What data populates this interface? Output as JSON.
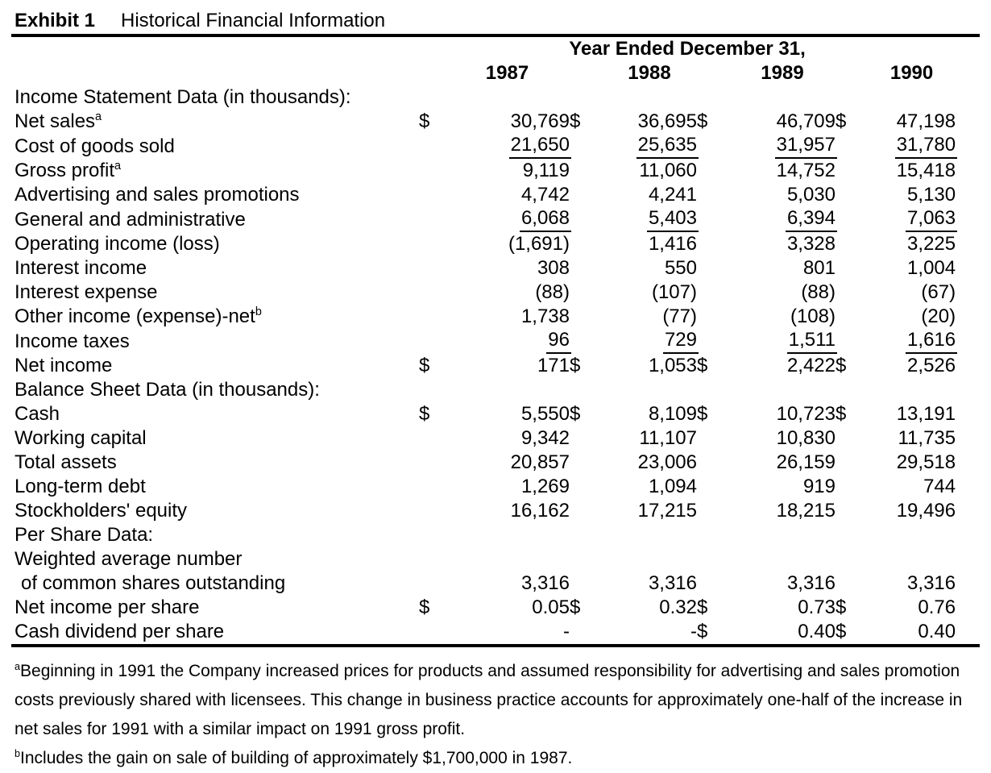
{
  "header": {
    "exhibit_label": "Exhibit 1",
    "title": "Historical Financial Information",
    "span_header": "Year Ended December 31,",
    "years": [
      "1987",
      "1988",
      "1989",
      "1990"
    ]
  },
  "table": {
    "currency_symbol": "$",
    "rows": [
      {
        "type": "section",
        "label": "Income Statement Data (in thousands):"
      },
      {
        "type": "data",
        "label": "Net sales",
        "sup": "a",
        "dollar": true,
        "values": [
          "30,769",
          "36,695",
          "46,709",
          "47,198"
        ]
      },
      {
        "type": "data",
        "label": "Cost of goods sold",
        "underline": true,
        "values": [
          "21,650",
          "25,635",
          "31,957",
          "31,780"
        ]
      },
      {
        "type": "data",
        "label": "Gross profit",
        "sup": "a",
        "values": [
          "9,119",
          "11,060",
          "14,752",
          "15,418"
        ]
      },
      {
        "type": "data",
        "label": "Advertising and sales promotions",
        "values": [
          "4,742",
          "4,241",
          "5,030",
          "5,130"
        ]
      },
      {
        "type": "data",
        "label": "General and administrative",
        "underline": true,
        "values": [
          "6,068",
          "5,403",
          "6,394",
          "7,063"
        ]
      },
      {
        "type": "data",
        "label": "Operating income (loss)",
        "values": [
          "(1,691)",
          "1,416",
          "3,328",
          "3,225"
        ]
      },
      {
        "type": "data",
        "label": "Interest income",
        "values": [
          "308",
          "550",
          "801",
          "1,004"
        ]
      },
      {
        "type": "data",
        "label": "Interest expense",
        "values": [
          "(88)",
          "(107)",
          "(88)",
          "(67)"
        ]
      },
      {
        "type": "data",
        "label": "Other income (expense)-net",
        "sup": "b",
        "values": [
          "1,738",
          "(77)",
          "(108)",
          "(20)"
        ]
      },
      {
        "type": "data",
        "label": "Income taxes",
        "underline": true,
        "values": [
          "96",
          "729",
          "1,511",
          "1,616"
        ]
      },
      {
        "type": "data",
        "label": "Net income",
        "dollar": true,
        "values": [
          "171",
          "1,053",
          "2,422",
          "2,526"
        ]
      },
      {
        "type": "section",
        "label": "Balance Sheet Data (in thousands):"
      },
      {
        "type": "data",
        "label": "Cash",
        "dollar": true,
        "values": [
          "5,550",
          "8,109",
          "10,723",
          "13,191"
        ]
      },
      {
        "type": "data",
        "label": "Working capital",
        "values": [
          "9,342",
          "11,107",
          "10,830",
          "11,735"
        ]
      },
      {
        "type": "data",
        "label": "Total assets",
        "values": [
          "20,857",
          "23,006",
          "26,159",
          "29,518"
        ]
      },
      {
        "type": "data",
        "label": "Long-term debt",
        "values": [
          "1,269",
          "1,094",
          "919",
          "744"
        ]
      },
      {
        "type": "data",
        "label": "Stockholders' equity",
        "values": [
          "16,162",
          "17,215",
          "18,215",
          "19,496"
        ]
      },
      {
        "type": "section",
        "label": "Per Share Data:"
      },
      {
        "type": "data",
        "label": "Weighted average number",
        "values": [
          "",
          "",
          "",
          ""
        ]
      },
      {
        "type": "data",
        "label": "of common shares outstanding",
        "indent": true,
        "values": [
          "3,316",
          "3,316",
          "3,316",
          "3,316"
        ]
      },
      {
        "type": "data",
        "label": "Net income per share",
        "dollar": true,
        "values": [
          "0.05",
          "0.32",
          "0.73",
          "0.76"
        ]
      },
      {
        "type": "data",
        "label": "Cash dividend per share",
        "dollars": [
          false,
          false,
          true,
          true
        ],
        "values": [
          "-",
          "-",
          "0.40",
          "0.40"
        ]
      }
    ]
  },
  "footnotes": [
    {
      "marker": "a",
      "text": "Beginning in 1991 the Company increased prices for products and assumed responsibility for advertising and sales promotion costs previously shared with licensees.  This change in business practice accounts for approximately one-half of the increase in net sales for 1991 with a similar impact on 1991 gross profit."
    },
    {
      "marker": "b",
      "text": "Includes the gain on sale of building of approximately $1,700,000 in 1987."
    }
  ]
}
